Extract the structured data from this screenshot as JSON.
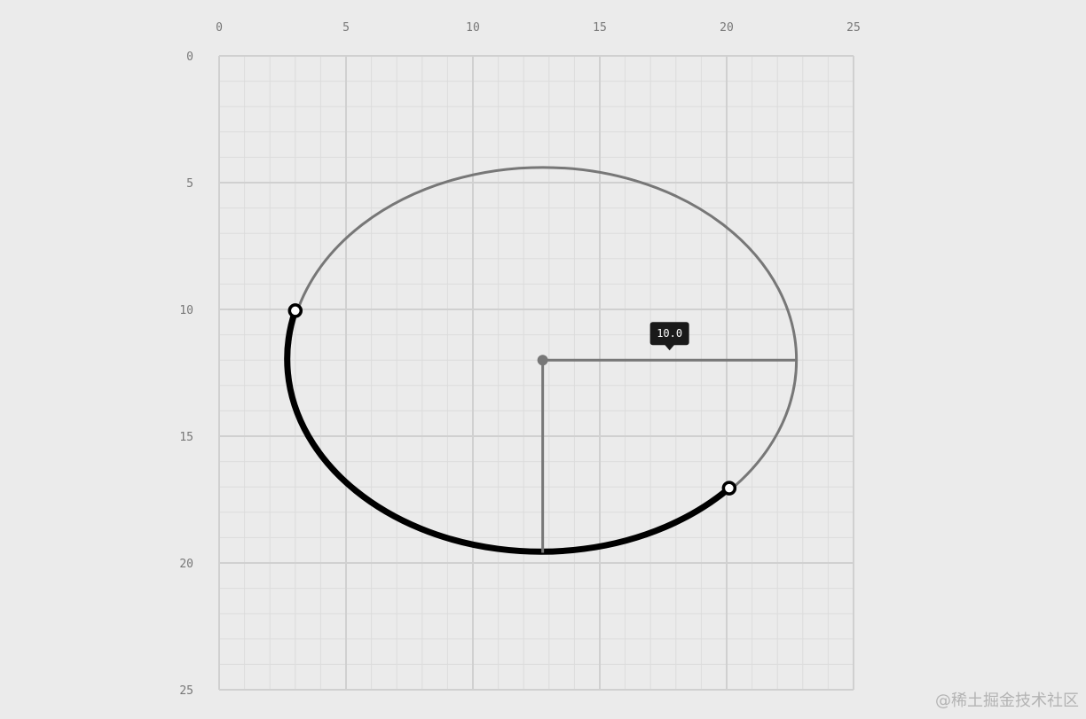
{
  "plane": {
    "x_ticks": [
      "0",
      "5",
      "10",
      "15",
      "20",
      "25"
    ],
    "y_ticks": [
      "0",
      "5",
      "10",
      "15",
      "20",
      "25"
    ],
    "x_range": [
      0,
      25
    ],
    "y_range": [
      0,
      25
    ],
    "y_axis_direction": "down",
    "minor_grid_step": 1,
    "major_grid_step": 5
  },
  "ellipse": {
    "center": [
      12.75,
      12
    ],
    "radius_x": 10,
    "radius_y": 7.6
  },
  "arc": {
    "start_point": [
      3.0,
      10.05
    ],
    "end_point": [
      20.1,
      17.05
    ],
    "direction": "counterclockwise through bottom"
  },
  "radius_label": "10.0",
  "watermark": "@稀土掘金技术社区",
  "colors": {
    "background": "#ebebeb",
    "grid_minor": "#dcdcdc",
    "grid_major": "#d0d0d0",
    "ellipse_stroke": "#777777",
    "arc_stroke": "#000000",
    "tooltip_bg": "#1a1a1a"
  }
}
